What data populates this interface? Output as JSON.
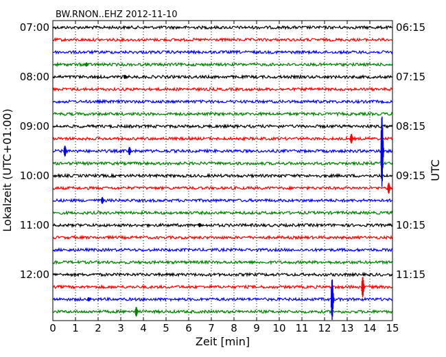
{
  "chart_data": {
    "type": "line",
    "title": "BW.RNON..EHZ 2012-11-10",
    "xlabel": "Zeit  [min]",
    "ylabel_left": "Lokalzeit (UTC+01:00)",
    "ylabel_right": "UTC",
    "xlim": [
      0,
      15
    ],
    "x_ticks": [
      "0",
      "1",
      "2",
      "3",
      "4",
      "5",
      "6",
      "7",
      "8",
      "9",
      "10",
      "11",
      "12",
      "13",
      "14",
      "15"
    ],
    "grid": "vertical dotted",
    "trace_count": 24,
    "trace_colors": [
      "#000000",
      "#ff0000",
      "#0000ff",
      "#008000"
    ],
    "left_tick_labels": [
      "07:00",
      "08:00",
      "09:00",
      "10:00",
      "11:00",
      "12:00"
    ],
    "right_tick_labels": [
      "06:15",
      "07:15",
      "08:15",
      "09:15",
      "10:15",
      "11:15"
    ],
    "events": [
      {
        "trace": 4,
        "x": 1.5,
        "amp": 3
      },
      {
        "trace": 5,
        "x": 3.2,
        "amp": 3
      },
      {
        "trace": 10,
        "x": 13.2,
        "amp": 7
      },
      {
        "trace": 11,
        "x": 0.55,
        "amp": 8
      },
      {
        "trace": 11,
        "x": 3.4,
        "amp": 6
      },
      {
        "trace": 11,
        "x": 14.55,
        "amp": 52
      },
      {
        "trace": 14,
        "x": 14.85,
        "amp": 8
      },
      {
        "trace": 15,
        "x": 2.2,
        "amp": 5
      },
      {
        "trace": 17,
        "x": 6.5,
        "amp": 3
      },
      {
        "trace": 22,
        "x": 13.7,
        "amp": 15
      },
      {
        "trace": 23,
        "x": 12.35,
        "amp": 30
      },
      {
        "trace": 23,
        "x": 1.6,
        "amp": 3
      },
      {
        "trace": 24,
        "x": 3.7,
        "amp": 7
      }
    ]
  }
}
